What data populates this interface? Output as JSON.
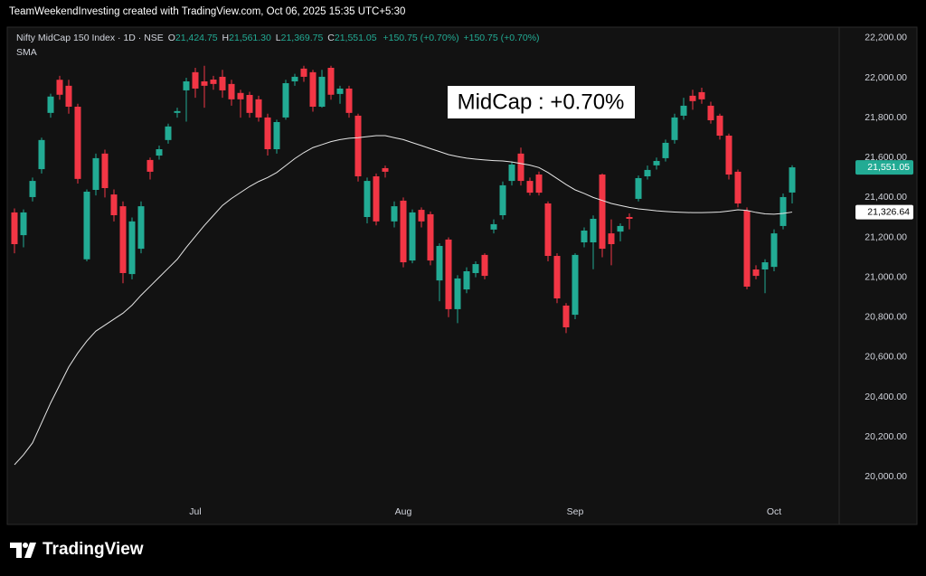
{
  "header": "TeamWeekendInvesting created with TradingView.com, Oct 06, 2025 15:35 UTC+5:30",
  "footer": "TradingView",
  "chart_data": {
    "type": "candlestick",
    "legend": {
      "symbol": "Nifty MidCap 150 Index · 1D · NSE",
      "o_label": "O",
      "o_value": "21,424.75",
      "h_label": "H",
      "h_value": "21,561.30",
      "l_label": "L",
      "l_value": "21,369.75",
      "c_label": "C",
      "c_value": "21,551.05",
      "change": "+150.75 (+0.70%)",
      "change2": "+150.75 (+0.70%)",
      "indicator": "SMA"
    },
    "annotation": "MidCap : +0.70%",
    "up_color": "#22ab94",
    "down_color": "#f23645",
    "categories": [
      null,
      null,
      null,
      null,
      null,
      null,
      null,
      null,
      null,
      null,
      null,
      null,
      null,
      null,
      null,
      null,
      null,
      null,
      null,
      null,
      "Jul",
      null,
      null,
      null,
      null,
      null,
      null,
      null,
      null,
      null,
      null,
      null,
      null,
      null,
      null,
      null,
      null,
      null,
      null,
      null,
      null,
      null,
      null,
      "Aug",
      null,
      null,
      null,
      null,
      null,
      null,
      null,
      null,
      null,
      null,
      null,
      null,
      null,
      null,
      null,
      null,
      null,
      null,
      "Sep",
      null,
      null,
      null,
      null,
      null,
      null,
      null,
      null,
      null,
      null,
      null,
      null,
      null,
      null,
      null,
      null,
      null,
      null,
      null,
      null,
      null,
      "Oct",
      null,
      null
    ],
    "open": [
      21325,
      21211,
      21402,
      21542,
      21824,
      21990,
      21960,
      21855,
      21090,
      21438,
      21620,
      21415,
      21356,
      21016,
      21143,
      21588,
      21610,
      21688,
      21824,
      21937,
      22028,
      21982,
      21991,
      22005,
      21969,
      21924,
      21914,
      21892,
      21801,
      21642,
      21801,
      21982,
      22046,
      22028,
      21855,
      22050,
      21919,
      21946,
      21810,
      21302,
      21506,
      21547,
      21280,
      21384,
      21084,
      21338,
      21316,
      20984,
      21189,
      20840,
      20939,
      21021,
      21112,
      21239,
      21311,
      21483,
      21620,
      21483,
      21515,
      21370,
      21107,
      20858,
      20812,
      21175,
      21175,
      21515,
      21220,
      21229,
      21302,
      21393,
      21506,
      21561,
      21597,
      21688,
      21810,
      21910,
      21928,
      21860,
      21810,
      21710,
      21529,
      21334,
      21039,
      21039,
      21052,
      21257,
      21424.75
    ],
    "high": [
      21345,
      21340,
      21500,
      21700,
      21920,
      22010,
      21990,
      21870,
      21440,
      21620,
      21640,
      21440,
      21380,
      21300,
      21380,
      21600,
      21660,
      21770,
      21850,
      22000,
      22050,
      22060,
      22010,
      22040,
      21990,
      21940,
      21930,
      21910,
      21820,
      21790,
      21990,
      22020,
      22060,
      22040,
      22040,
      22060,
      21960,
      21960,
      21820,
      21500,
      21520,
      21560,
      21380,
      21400,
      21340,
      21350,
      21330,
      21170,
      21200,
      21010,
      21050,
      21080,
      21120,
      21290,
      21480,
      21580,
      21650,
      21500,
      21530,
      21380,
      21120,
      20870,
      21120,
      21250,
      21310,
      21520,
      21290,
      21270,
      21320,
      21510,
      21560,
      21600,
      21690,
      21820,
      21900,
      21940,
      21950,
      21880,
      21820,
      21720,
      21540,
      21350,
      21060,
      21090,
      21240,
      21420,
      21561.3
    ],
    "low": [
      21120,
      21150,
      21380,
      21520,
      21800,
      21890,
      21820,
      21470,
      21080,
      21410,
      21400,
      21280,
      20970,
      20990,
      21120,
      21490,
      21590,
      21670,
      21800,
      21780,
      21900,
      21850,
      21940,
      21900,
      21860,
      21800,
      21800,
      21780,
      21610,
      21620,
      21790,
      21960,
      21980,
      21830,
      21850,
      21890,
      21870,
      21800,
      21480,
      21270,
      21260,
      21500,
      21250,
      21050,
      21070,
      21250,
      21060,
      20880,
      20800,
      20770,
      20920,
      21000,
      20990,
      21220,
      21290,
      21460,
      21460,
      21410,
      21410,
      21080,
      20870,
      20720,
      20790,
      21150,
      21040,
      21100,
      21060,
      21180,
      21240,
      21380,
      21490,
      21540,
      21580,
      21670,
      21790,
      21840,
      21870,
      21770,
      21690,
      21490,
      21350,
      20940,
      20990,
      20920,
      21030,
      21240,
      21369.75
    ],
    "close": [
      21166,
      21325,
      21483,
      21688,
      21906,
      21915,
      21855,
      21493,
      21429,
      21597,
      21447,
      21311,
      21021,
      21280,
      21356,
      21529,
      21642,
      21756,
      21833,
      21982,
      21946,
      21960,
      21969,
      21937,
      21892,
      21892,
      21824,
      21801,
      21642,
      21778,
      21973,
      22005,
      22005,
      21855,
      22005,
      21915,
      21946,
      21824,
      21506,
      21483,
      21280,
      21529,
      21356,
      21075,
      21325,
      21280,
      21084,
      21157,
      20840,
      20994,
      21030,
      21066,
      21007,
      21266,
      21461,
      21565,
      21483,
      21424,
      21424,
      21107,
      20894,
      20749,
      21112,
      21234,
      21293,
      21143,
      21166,
      21257,
      21293,
      21497,
      21538,
      21583,
      21674,
      21801,
      21860,
      21883,
      21892,
      21787,
      21710,
      21515,
      21370,
      20953,
      21007,
      21075,
      21220,
      21402,
      21551.05
    ],
    "sma": {
      "name": "SMA",
      "color": "#e6e6e6",
      "values": [
        20060,
        20110,
        20170,
        20270,
        20370,
        20460,
        20550,
        20620,
        20680,
        20730,
        20760,
        20790,
        20820,
        20860,
        20910,
        20955,
        21000,
        21045,
        21090,
        21150,
        21205,
        21260,
        21310,
        21360,
        21395,
        21425,
        21455,
        21480,
        21500,
        21525,
        21560,
        21595,
        21625,
        21650,
        21665,
        21680,
        21690,
        21697,
        21700,
        21705,
        21710,
        21710,
        21700,
        21690,
        21675,
        21660,
        21645,
        21630,
        21615,
        21605,
        21597,
        21592,
        21588,
        21585,
        21583,
        21578,
        21570,
        21562,
        21550,
        21525,
        21495,
        21465,
        21438,
        21420,
        21400,
        21385,
        21370,
        21360,
        21350,
        21343,
        21338,
        21333,
        21330,
        21327,
        21325,
        21324,
        21324,
        21325,
        21327,
        21332,
        21338,
        21335,
        21325,
        21318,
        21316,
        21320,
        21326.64
      ]
    },
    "last_price": {
      "value": 21551.05,
      "label": "21,551.05"
    },
    "sma_last": {
      "value": 21326.64,
      "label": "21,326.64"
    },
    "ylim": [
      19874,
      22254
    ],
    "yticks": [
      {
        "value": 20000,
        "label": "20,000.00"
      },
      {
        "value": 20200,
        "label": "20,200.00"
      },
      {
        "value": 20400,
        "label": "20,400.00"
      },
      {
        "value": 20600,
        "label": "20,600.00"
      },
      {
        "value": 20800,
        "label": "20,800.00"
      },
      {
        "value": 21000,
        "label": "21,000.00"
      },
      {
        "value": 21200,
        "label": "21,200.00"
      },
      {
        "value": 21400,
        "label": "21,400.00"
      },
      {
        "value": 21600,
        "label": "21,600.00"
      },
      {
        "value": 21800,
        "label": "21,800.00"
      },
      {
        "value": 22000,
        "label": "22,000.00"
      },
      {
        "value": 22200,
        "label": "22,200.00"
      }
    ],
    "grid": false
  }
}
